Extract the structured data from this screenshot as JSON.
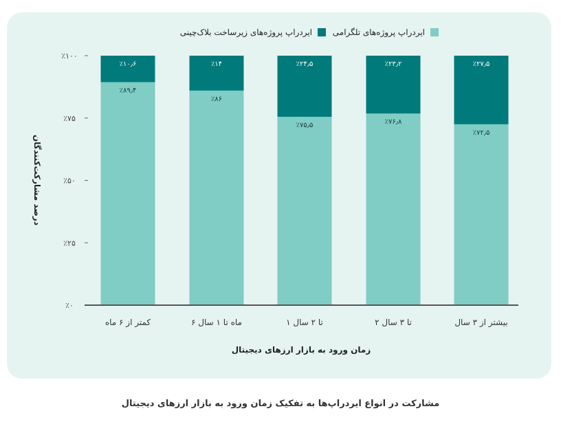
{
  "chart_data": {
    "type": "bar",
    "stacked": true,
    "orientation": "vertical",
    "direction": "rtl",
    "categories": [
      "بیشتر از ۳ سال",
      "۲ تا ۳ سال",
      "۱ تا ۲ سال",
      "۶ ماه تا ۱ سال",
      "کمتر از ۶ ماه"
    ],
    "series": [
      {
        "name": "ایردراپ پروژه‌های تلگرامی",
        "color": "#7fcdc4",
        "values": [
          72.5,
          76.8,
          75.5,
          86,
          89.4
        ],
        "labels": [
          "٪۷۲٫۵",
          "٪۷۶٫۸",
          "٪۷۵٫۵",
          "٪۸۶",
          "٪۸۹٫۴"
        ]
      },
      {
        "name": "ایردراپ پروژه‌های زیرساخت بلاک‌چینی",
        "color": "#007a7a",
        "values": [
          27.5,
          23.2,
          24.5,
          14,
          10.6
        ],
        "labels": [
          "٪۲۷٫۵",
          "٪۲۳٫۲",
          "٪۲۴٫۵",
          "٪۱۴",
          "٪۱۰٫۶"
        ]
      }
    ],
    "xlabel": "زمان ورود به بازار ارزهای دیجیتال",
    "ylabel": "درصد مشارکت‌کنندگان",
    "ylim": [
      0,
      100
    ],
    "yticks": [
      0,
      25,
      50,
      75,
      100
    ],
    "ytick_labels": [
      "٪۰",
      "٪۲۵",
      "٪۵۰",
      "٪۷۵",
      "٪۱۰۰"
    ],
    "grid": false,
    "legend_position": "top"
  },
  "caption": "مشارکت در انواع ایردراپ‌ها به تفکیک زمان ورود به بازار ارزهای دیجیتال"
}
